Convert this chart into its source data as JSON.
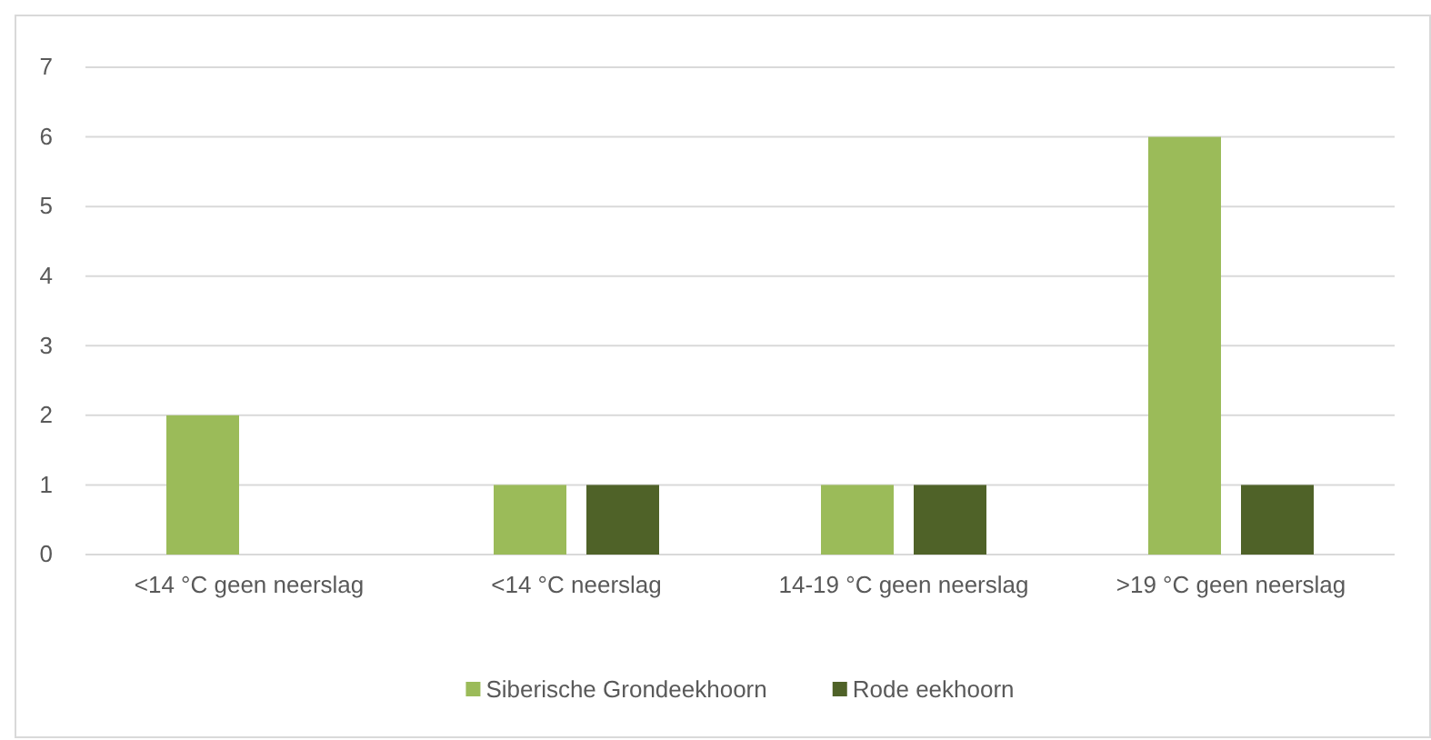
{
  "chart_data": {
    "type": "bar",
    "categories": [
      "<14 °C geen neerslag",
      "<14 °C neerslag",
      "14-19 °C geen neerslag",
      ">19 °C geen neerslag"
    ],
    "series": [
      {
        "name": "Siberische Grondeekhoorn",
        "color": "#9bbb59",
        "values": [
          2,
          1,
          1,
          6
        ]
      },
      {
        "name": "Rode eekhoorn",
        "color": "#4f6228",
        "values": [
          null,
          1,
          1,
          1
        ]
      }
    ],
    "ylim": [
      0,
      7
    ],
    "yticks": [
      0,
      1,
      2,
      3,
      4,
      5,
      6,
      7
    ],
    "grid": "y",
    "legend": "bottom"
  }
}
